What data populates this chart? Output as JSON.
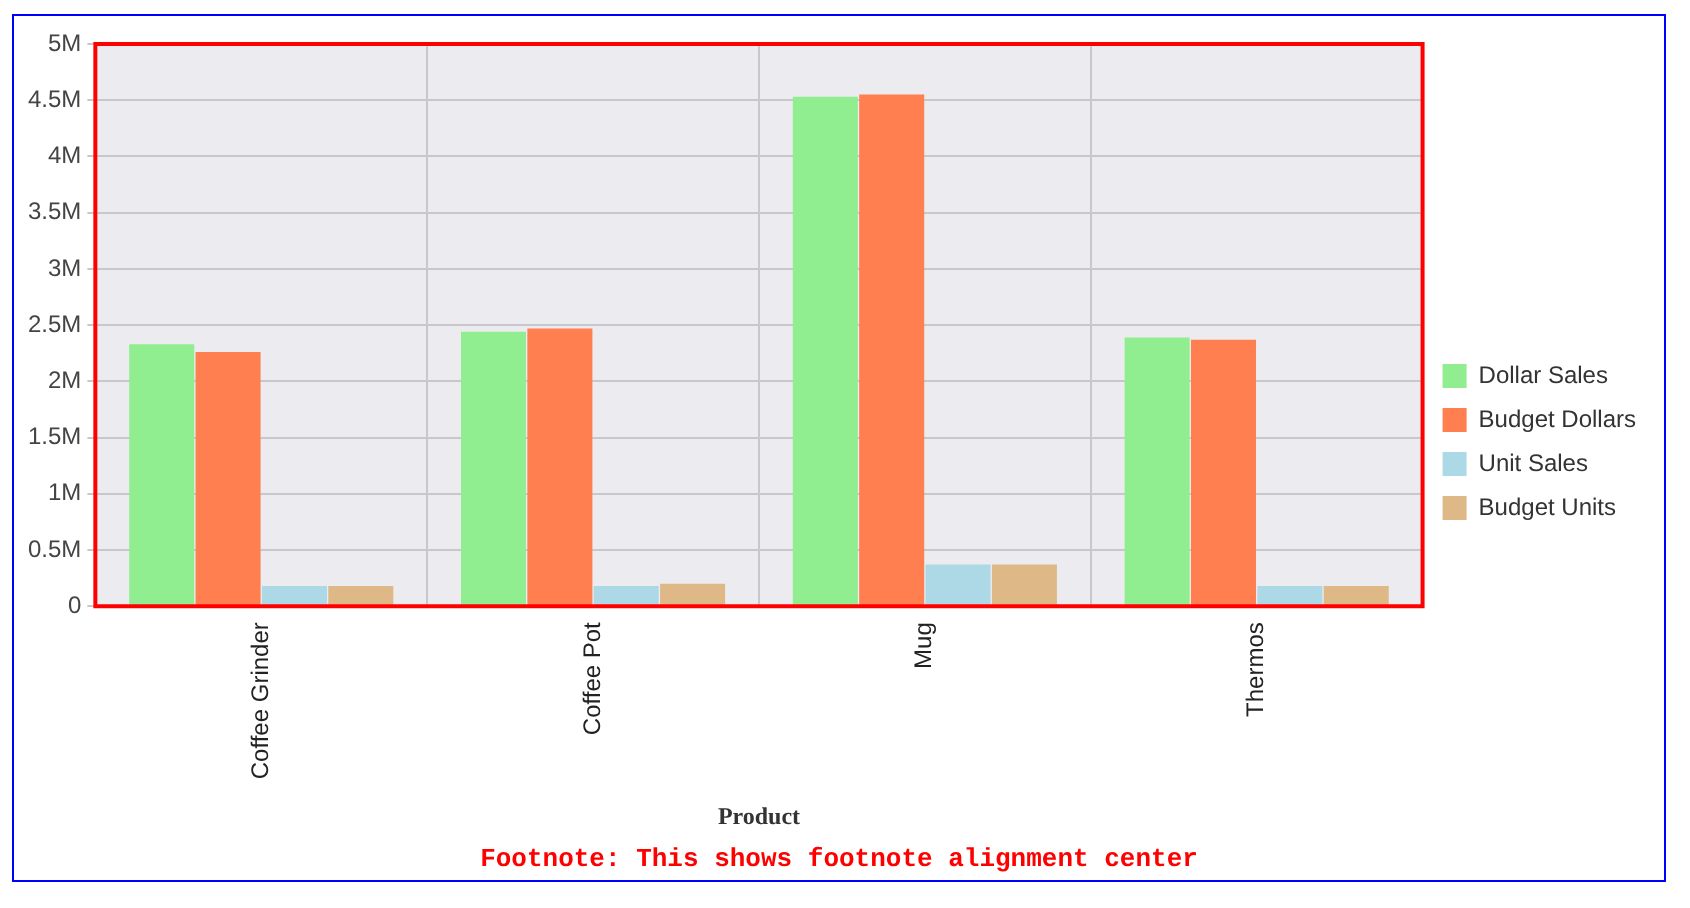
{
  "chart_data": {
    "type": "bar",
    "xlabel": "Product",
    "categories": [
      "Coffee Grinder",
      "Coffee Pot",
      "Mug",
      "Thermos"
    ],
    "series": [
      {
        "name": "Dollar Sales",
        "color": "#90ee90",
        "values": [
          2330000,
          2440000,
          4530000,
          2390000
        ]
      },
      {
        "name": "Budget Dollars",
        "color": "#ff7f50",
        "values": [
          2260000,
          2470000,
          4550000,
          2370000
        ]
      },
      {
        "name": "Unit Sales",
        "color": "#add8e6",
        "values": [
          180000,
          180000,
          370000,
          180000
        ]
      },
      {
        "name": "Budget Units",
        "color": "#deb887",
        "values": [
          180000,
          200000,
          370000,
          180000
        ]
      }
    ],
    "ylim": [
      0,
      5000000
    ],
    "yticks": [
      {
        "value": 0,
        "label": "0"
      },
      {
        "value": 500000,
        "label": "0.5M"
      },
      {
        "value": 1000000,
        "label": "1M"
      },
      {
        "value": 1500000,
        "label": "1.5M"
      },
      {
        "value": 2000000,
        "label": "2M"
      },
      {
        "value": 2500000,
        "label": "2.5M"
      },
      {
        "value": 3000000,
        "label": "3M"
      },
      {
        "value": 3500000,
        "label": "3.5M"
      },
      {
        "value": 4000000,
        "label": "4M"
      },
      {
        "value": 4500000,
        "label": "4.5M"
      },
      {
        "value": 5000000,
        "label": "5M"
      }
    ],
    "grid": true,
    "legend": "right",
    "annotations": [
      "Footnote: This shows footnote alignment center"
    ]
  }
}
